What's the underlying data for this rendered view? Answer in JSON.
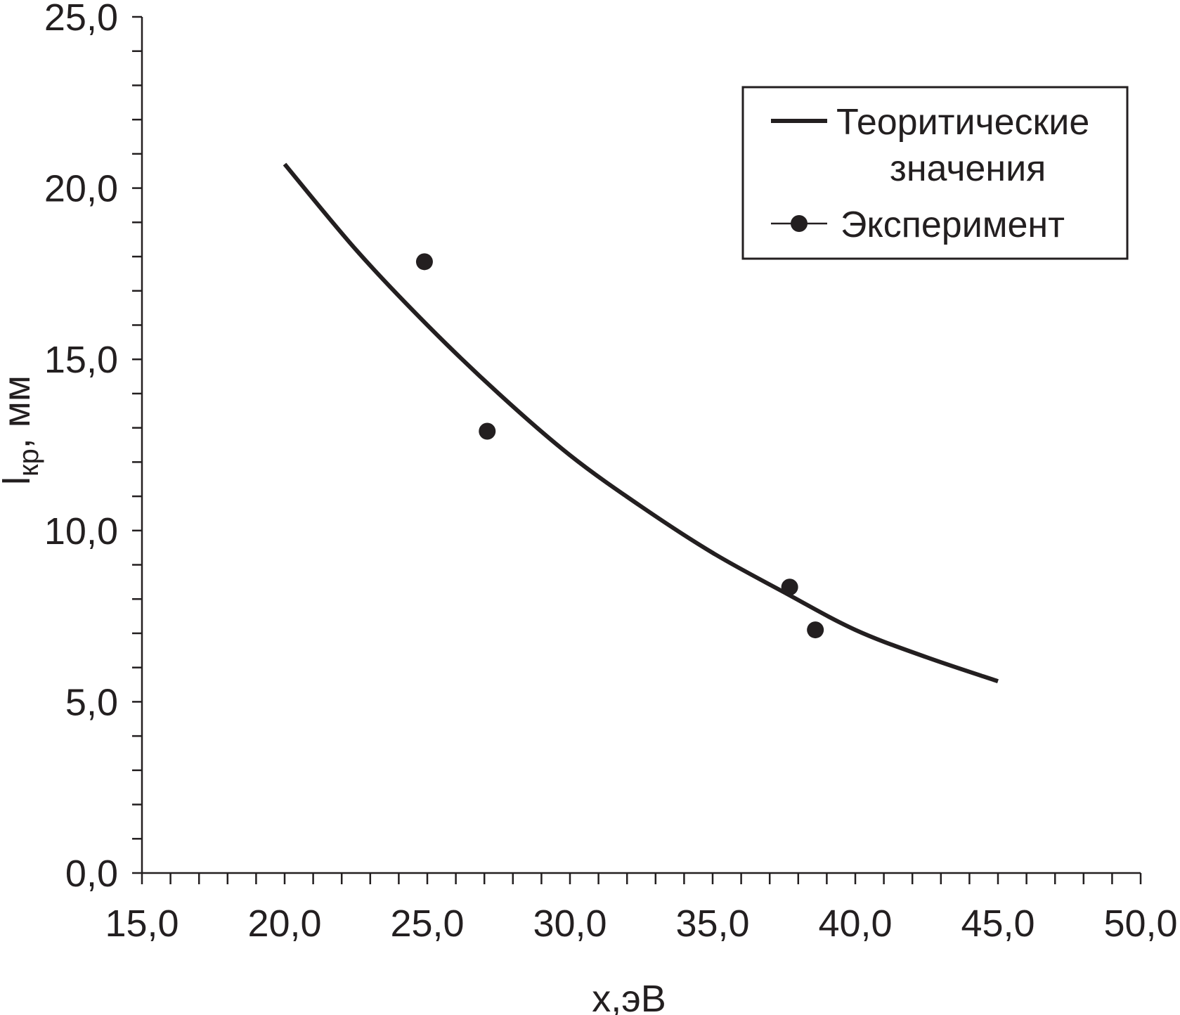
{
  "chart_data": {
    "type": "scatter",
    "xlabel": "x,эВ",
    "ylabel_main": "l",
    "ylabel_sub": "кр",
    "ylabel_rest": ", мм",
    "xlim": [
      15,
      50
    ],
    "ylim": [
      0,
      25
    ],
    "x_major_step": 5,
    "x_minor_step": 1,
    "y_major_step": 5,
    "y_minor_step": 1,
    "x_tick_labels": [
      "15,0",
      "20,0",
      "25,0",
      "30,0",
      "35,0",
      "40,0",
      "45,0",
      "50,0"
    ],
    "y_tick_labels": [
      "0,0",
      "5,0",
      "10,0",
      "15,0",
      "20,0",
      "25,0"
    ],
    "legend_position": "top-right",
    "colors": {
      "ink": "#231f20",
      "background": "#ffffff"
    },
    "series": [
      {
        "name": "Теоритические значения",
        "legend_lines": [
          "Теоритические",
          "значения"
        ],
        "kind": "line",
        "x": [
          20,
          22.5,
          25,
          27.5,
          30,
          32.5,
          35,
          37.5,
          40,
          42.5,
          45
        ],
        "y": [
          20.7,
          18.2,
          16.0,
          14.0,
          12.2,
          10.7,
          9.35,
          8.2,
          7.1,
          6.3,
          5.6
        ]
      },
      {
        "name": "Эксперимент",
        "legend_lines": [
          "Эксперимент"
        ],
        "kind": "scatter",
        "x": [
          24.9,
          27.1,
          37.7,
          38.6
        ],
        "y": [
          17.85,
          12.9,
          8.35,
          7.1
        ]
      }
    ]
  }
}
